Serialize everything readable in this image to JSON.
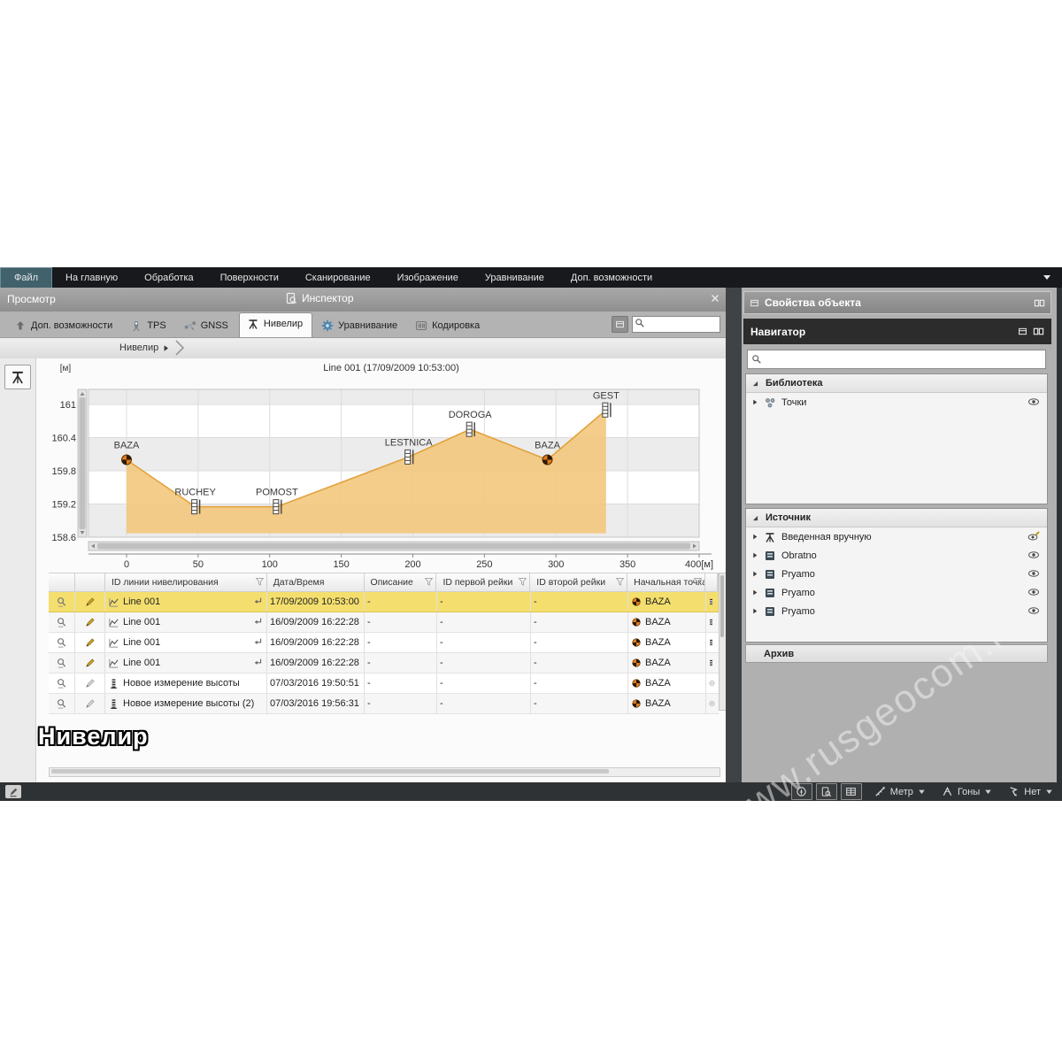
{
  "menu": {
    "items": [
      "Файл",
      "На главную",
      "Обработка",
      "Поверхности",
      "Сканирование",
      "Изображение",
      "Уравнивание",
      "Доп. возможности"
    ],
    "active": "Файл"
  },
  "left_panel": {
    "title": "Просмотр",
    "inspector_title": "Инспектор",
    "breadcrumb": "Нивелир"
  },
  "tabs": [
    {
      "label": "Доп. возможности",
      "icon": "uparrow",
      "active": false
    },
    {
      "label": "TPS",
      "icon": "tps",
      "active": false
    },
    {
      "label": "GNSS",
      "icon": "gnss",
      "active": false
    },
    {
      "label": "Нивелир",
      "icon": "tripod",
      "active": true
    },
    {
      "label": "Уравнивание",
      "icon": "gear",
      "active": false
    },
    {
      "label": "Кодировка",
      "icon": "barcode",
      "active": false
    }
  ],
  "chart_data": {
    "type": "area",
    "title": "Line 001 (17/09/2009 10:53:00)",
    "y_unit": "[м]",
    "x_unit": "[м]",
    "y_ticks": [
      161,
      160.4,
      159.8,
      159.2,
      158.6
    ],
    "x_ticks": [
      0,
      50,
      100,
      150,
      200,
      250,
      300,
      350,
      400
    ],
    "ylim": [
      158.6,
      161.3
    ],
    "xlim": [
      -27,
      400
    ],
    "baseline": 158.67,
    "grid": true,
    "fill_color": "#f3c87d",
    "line_color": "#e2a23c",
    "points": [
      {
        "label": "BAZA",
        "x": 0,
        "y": 160.0,
        "marker": "benchmark"
      },
      {
        "label": "RUCHEY",
        "x": 48,
        "y": 159.15,
        "marker": "staff"
      },
      {
        "label": "POMOST",
        "x": 105,
        "y": 159.15,
        "marker": "staff"
      },
      {
        "label": "LESTNICA",
        "x": 197,
        "y": 160.05,
        "marker": "staff"
      },
      {
        "label": "DOROGA",
        "x": 240,
        "y": 160.55,
        "marker": "staff"
      },
      {
        "label": "BAZA",
        "x": 294,
        "y": 160.0,
        "marker": "benchmark"
      },
      {
        "label": "GEST",
        "x": 335,
        "y": 160.9,
        "marker": "staff"
      }
    ]
  },
  "table": {
    "columns": [
      {
        "label": "",
        "filter": false
      },
      {
        "label": "",
        "filter": false
      },
      {
        "label": "ID линии нивелирования",
        "filter": true
      },
      {
        "label": "Дата/Время",
        "filter": false
      },
      {
        "label": "Описание",
        "filter": true
      },
      {
        "label": "ID первой рейки",
        "filter": true
      },
      {
        "label": "ID второй рейки",
        "filter": true
      },
      {
        "label": "Начальная точка",
        "filter": true
      },
      {
        "label": "",
        "filter": false
      }
    ],
    "rows": [
      {
        "id": "Line 001",
        "type": "line",
        "datetime": "17/09/2009 10:53:00",
        "description": "-",
        "staff1": "-",
        "staff2": "-",
        "start": "BAZA",
        "highlight": true
      },
      {
        "id": "Line 001",
        "type": "line",
        "datetime": "16/09/2009 16:22:28",
        "description": "-",
        "staff1": "-",
        "staff2": "-",
        "start": "BAZA",
        "highlight": false
      },
      {
        "id": "Line 001",
        "type": "line",
        "datetime": "16/09/2009 16:22:28",
        "description": "-",
        "staff1": "-",
        "staff2": "-",
        "start": "BAZA",
        "highlight": false
      },
      {
        "id": "Line 001",
        "type": "line",
        "datetime": "16/09/2009 16:22:28",
        "description": "-",
        "staff1": "-",
        "staff2": "-",
        "start": "BAZA",
        "highlight": false
      },
      {
        "id": "Новое измерение высоты",
        "type": "height",
        "datetime": "07/03/2016 19:50:51",
        "description": "-",
        "staff1": "-",
        "staff2": "-",
        "start": "BAZA",
        "highlight": false
      },
      {
        "id": "Новое измерение высоты (2)",
        "type": "height",
        "datetime": "07/03/2016 19:56:31",
        "description": "-",
        "staff1": "-",
        "staff2": "-",
        "start": "BAZA",
        "highlight": false
      }
    ]
  },
  "caption": "Нивелир",
  "right_panel": {
    "properties_title": "Свойства объекта",
    "navigator_title": "Навигатор",
    "search_placeholder": "",
    "sections": [
      {
        "title": "Библиотека",
        "rows": [
          {
            "icon": "points",
            "label": "Точки",
            "right_icon": "eye"
          }
        ]
      },
      {
        "title": "Источник",
        "rows": [
          {
            "icon": "tripod",
            "label": "Введенная вручную",
            "right_icon": "eye-edit"
          },
          {
            "icon": "file",
            "label": "Obratno",
            "right_icon": "eye"
          },
          {
            "icon": "file",
            "label": "Pryamo",
            "right_icon": "eye"
          },
          {
            "icon": "file",
            "label": "Pryamo",
            "right_icon": "eye"
          },
          {
            "icon": "file",
            "label": "Pryamo",
            "right_icon": "eye"
          }
        ]
      },
      {
        "title": "Архив",
        "rows": []
      }
    ]
  },
  "status_bar": {
    "buttons": [
      "compass",
      "inspector",
      "grid"
    ],
    "dropdowns": [
      {
        "icon": "ruler",
        "label": "Метр"
      },
      {
        "icon": "angle",
        "label": "Гоны"
      },
      {
        "icon": "flag",
        "label": "Нет"
      }
    ]
  },
  "watermark": "www.rusgeocom.ru"
}
